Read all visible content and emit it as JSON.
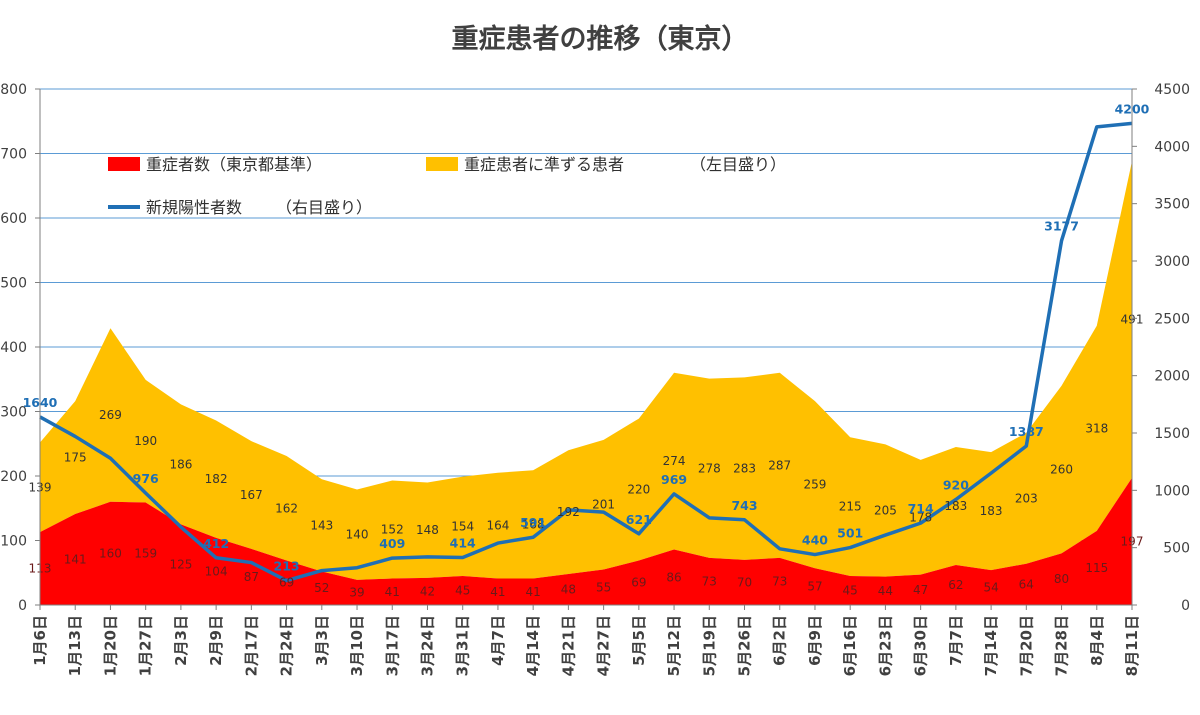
{
  "chart_data": {
    "type": "area",
    "title": "重症患者の推移（東京）",
    "categories": [
      "1月6日",
      "1月13日",
      "1月20日",
      "1月27日",
      "2月3日",
      "2月9日",
      "2月17日",
      "2月24日",
      "3月3日",
      "3月10日",
      "3月17日",
      "3月24日",
      "3月31日",
      "4月7日",
      "4月14日",
      "4月21日",
      "4月27日",
      "5月5日",
      "5月12日",
      "5月19日",
      "5月26日",
      "6月2日",
      "6月9日",
      "6月16日",
      "6月23日",
      "6月30日",
      "7月7日",
      "7月14日",
      "7月20日",
      "7月28日",
      "8月4日",
      "8月11日"
    ],
    "y_left": {
      "range": [
        0,
        800
      ],
      "ticks": [
        "0",
        "100",
        "200",
        "300",
        "400",
        "500",
        "600",
        "700",
        "800"
      ]
    },
    "y_right": {
      "range": [
        0,
        4500
      ],
      "ticks": [
        "0",
        "500",
        "1000",
        "1500",
        "2000",
        "2500",
        "3000",
        "3500",
        "4000",
        "4500"
      ]
    },
    "grid": true,
    "legend_position": "top-left",
    "series": [
      {
        "name": "重症者数（東京都基準）",
        "type": "stacked-area",
        "axis": "left",
        "color": "#ff0000",
        "values": [
          113,
          141,
          160,
          159,
          125,
          104,
          87,
          69,
          52,
          39,
          41,
          42,
          45,
          41,
          41,
          48,
          55,
          69,
          86,
          73,
          70,
          73,
          57,
          45,
          44,
          47,
          62,
          54,
          64,
          80,
          115,
          197
        ]
      },
      {
        "name": "重症患者に準ずる患者",
        "name_suffix": "（左目盛り）",
        "type": "stacked-area",
        "axis": "left",
        "color": "#ffc000",
        "values": [
          139,
          175,
          269,
          190,
          186,
          182,
          167,
          162,
          143,
          140,
          152,
          148,
          154,
          164,
          168,
          192,
          201,
          220,
          274,
          278,
          283,
          287,
          259,
          215,
          205,
          178,
          183,
          183,
          203,
          260,
          318,
          491
        ]
      },
      {
        "name": "新規陽性者数",
        "name_suffix": "（右目盛り）",
        "type": "line",
        "axis": "right",
        "color": "#1f6fb5",
        "values": [
          1640,
          1470,
          1280,
          976,
          680,
          412,
          370,
          213,
          300,
          325,
          409,
          420,
          414,
          540,
          591,
          830,
          810,
          621,
          969,
          760,
          743,
          490,
          440,
          501,
          610,
          714,
          920,
          1150,
          1387,
          3177,
          4170,
          4200
        ],
        "labeled": [
          1640,
          null,
          null,
          976,
          null,
          412,
          null,
          213,
          null,
          null,
          409,
          null,
          414,
          null,
          591,
          null,
          null,
          621,
          969,
          null,
          743,
          null,
          440,
          501,
          null,
          714,
          920,
          null,
          1387,
          3177,
          null,
          4200
        ]
      }
    ]
  }
}
